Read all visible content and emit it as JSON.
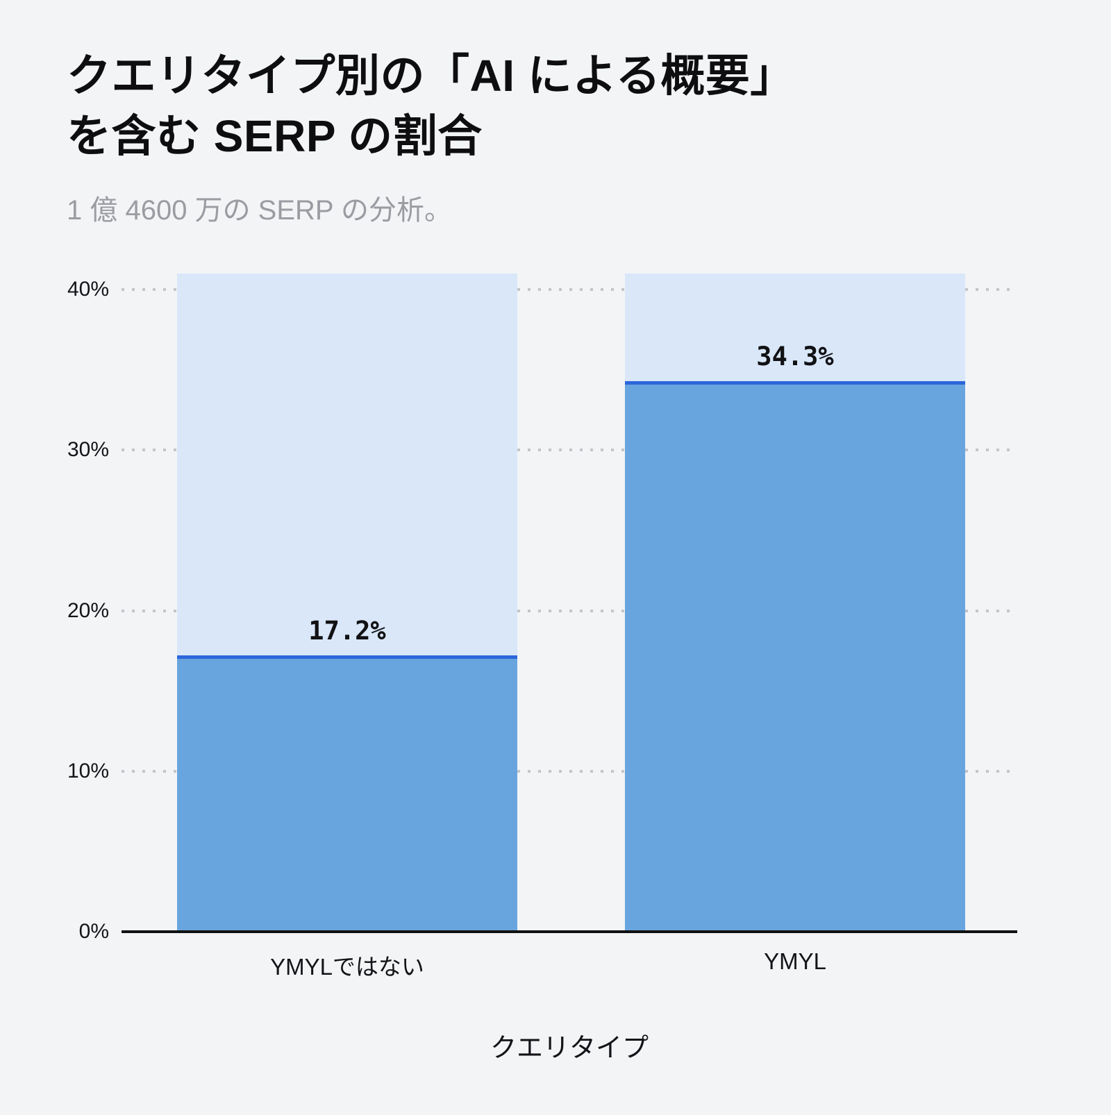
{
  "chart_data": {
    "type": "bar",
    "title": "クエリタイプ別の「AI による概要」を含む SERP の割合",
    "title_lines": [
      "クエリタイプ別の「AI による概要」",
      "を含む SERP の割合"
    ],
    "subtitle": "1 億 4600 万の SERP の分析。",
    "xlabel": "クエリタイプ",
    "ylabel": "",
    "categories": [
      "YMYLではない",
      "YMYL"
    ],
    "values": [
      17.2,
      34.3
    ],
    "value_labels": [
      "17.2%",
      "34.3%"
    ],
    "yticks": [
      {
        "value": 0,
        "label": "0%"
      },
      {
        "value": 10,
        "label": "10%"
      },
      {
        "value": 20,
        "label": "20%"
      },
      {
        "value": 30,
        "label": "30%"
      },
      {
        "value": 40,
        "label": "40%"
      }
    ],
    "ylim": [
      0,
      40
    ],
    "track_top": 41,
    "grid": "horizontal-dotted",
    "legend": "none",
    "colors": {
      "background": "#f3f4f6",
      "bar_track": "#d9e7f9",
      "bar_fill": "#68a5de",
      "bar_top_line": "#2b66db",
      "grid": "#c4c5ca",
      "axis": "#111111",
      "title": "#0e0e10",
      "subtitle": "#9b9ba2"
    }
  }
}
